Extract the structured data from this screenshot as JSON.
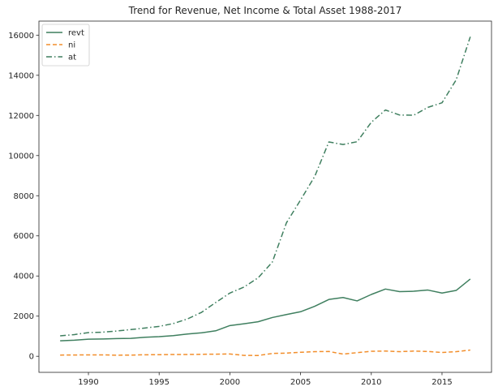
{
  "chart_data": {
    "type": "line",
    "title": "Trend for Revenue, Net Income & Total Asset 1988-2017",
    "xlabel": "",
    "ylabel": "",
    "xlim": [
      1986.5,
      2018.5
    ],
    "ylim": [
      -800,
      16700
    ],
    "xticks": [
      1990,
      1995,
      2000,
      2005,
      2010,
      2015
    ],
    "xtick_labels": [
      "1990",
      "1995",
      "2000",
      "2005",
      "2010",
      "2015"
    ],
    "yticks": [
      0,
      2000,
      4000,
      6000,
      8000,
      10000,
      12000,
      14000,
      16000
    ],
    "ytick_labels": [
      "0",
      "2000",
      "4000",
      "6000",
      "8000",
      "10000",
      "12000",
      "14000",
      "16000"
    ],
    "grid": false,
    "legend_position": "top-left",
    "x": [
      1988,
      1989,
      1990,
      1991,
      1992,
      1993,
      1994,
      1995,
      1996,
      1997,
      1998,
      1999,
      2000,
      2001,
      2002,
      2003,
      2004,
      2005,
      2006,
      2007,
      2008,
      2009,
      2010,
      2011,
      2012,
      2013,
      2014,
      2015,
      2016,
      2017
    ],
    "series": [
      {
        "name": "revt",
        "color": "#3f7f5f",
        "style": "solid",
        "values": [
          770,
          800,
          850,
          860,
          880,
          890,
          950,
          980,
          1030,
          1110,
          1170,
          1270,
          1530,
          1620,
          1720,
          1930,
          2080,
          2220,
          2490,
          2830,
          2930,
          2760,
          3080,
          3350,
          3220,
          3240,
          3300,
          3150,
          3280,
          3850
        ]
      },
      {
        "name": "ni",
        "color": "#f28e2b",
        "style": "dashed",
        "values": [
          60,
          65,
          70,
          70,
          55,
          60,
          75,
          80,
          90,
          90,
          100,
          105,
          115,
          45,
          40,
          140,
          160,
          200,
          230,
          240,
          110,
          180,
          250,
          260,
          230,
          260,
          240,
          190,
          230,
          310
        ]
      },
      {
        "name": "at",
        "color": "#3f7f5f",
        "style": "dashdot",
        "values": [
          1020,
          1080,
          1180,
          1200,
          1260,
          1330,
          1410,
          1490,
          1630,
          1860,
          2190,
          2680,
          3150,
          3450,
          3910,
          4690,
          6650,
          7790,
          8960,
          10680,
          10550,
          10690,
          11660,
          12270,
          12020,
          12010,
          12400,
          12630,
          13770,
          15920
        ]
      }
    ]
  }
}
